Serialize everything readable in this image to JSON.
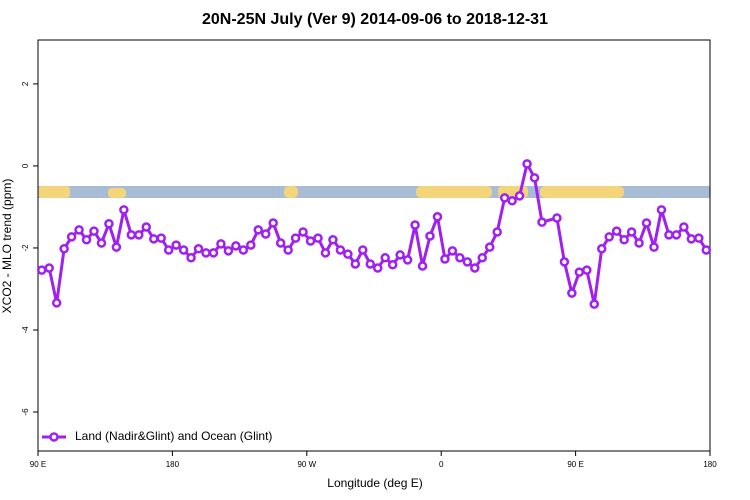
{
  "chart_data": {
    "type": "line",
    "title": "20N-25N July (Ver 9)   2014-09-06 to 2018-12-31",
    "x_label": "Longitude (deg E)",
    "y_label": "XCO2 - MLO trend (ppm)",
    "xlim": [
      90,
      540
    ],
    "ylim": [
      -6.95,
      3.07
    ],
    "xticks": [
      {
        "value": 90,
        "label": "90 E"
      },
      180,
      {
        "value": 270,
        "label": "90 W"
      },
      {
        "value": 360,
        "label": "0"
      },
      {
        "value": 450,
        "label": "90 E"
      },
      {
        "value": 540,
        "label": "180"
      }
    ],
    "yticks": [
      -6,
      -4,
      -2,
      0,
      2
    ],
    "legend": "bottom-left",
    "x": [
      92.5,
      97.5,
      102.5,
      107.5,
      112.5,
      117.5,
      122.5,
      127.5,
      132.5,
      137.5,
      142.5,
      147.5,
      152.5,
      157.5,
      162.5,
      167.5,
      172.5,
      177.5,
      182.5,
      187.5,
      192.5,
      197.5,
      202.5,
      207.5,
      212.5,
      217.5,
      222.5,
      227.5,
      232.5,
      237.5,
      242.5,
      247.5,
      252.5,
      257.5,
      262.5,
      267.5,
      272.5,
      277.5,
      282.5,
      287.5,
      292.5,
      297.5,
      302.5,
      307.5,
      312.5,
      317.5,
      322.5,
      327.5,
      332.5,
      337.5,
      342.5,
      347.5,
      352.5,
      357.5,
      362.5,
      367.5,
      372.5,
      377.5,
      382.5,
      387.5,
      392.5,
      397.5,
      402.5,
      407.5,
      412.5,
      417.5,
      422.5,
      427.5,
      437.5,
      442.5,
      447.5,
      452.5,
      457.5,
      462.5,
      467.5,
      472.5,
      477.5,
      482.5,
      487.5,
      492.5,
      497.5,
      502.5,
      507.5,
      512.5,
      517.5,
      522.5,
      527.5,
      532.5,
      537.5
    ],
    "series": [
      {
        "name": "Land (Nadir&Glint) and Ocean (Glint)",
        "color": "#a020f0",
        "values": [
          -2.54,
          -2.49,
          -3.34,
          -2.02,
          -1.73,
          -1.56,
          -1.8,
          -1.59,
          -1.88,
          -1.41,
          -1.98,
          -1.07,
          -1.68,
          -1.68,
          -1.49,
          -1.78,
          -1.76,
          -2.05,
          -1.93,
          -2.05,
          -2.24,
          -2.02,
          -2.12,
          -2.12,
          -1.9,
          -2.07,
          -1.95,
          -2.05,
          -1.93,
          -1.56,
          -1.66,
          -1.39,
          -1.88,
          -2.05,
          -1.76,
          -1.61,
          -1.83,
          -1.76,
          -2.12,
          -1.8,
          -2.05,
          -2.15,
          -2.39,
          -2.05,
          -2.39,
          -2.49,
          -2.24,
          -2.41,
          -2.17,
          -2.29,
          -1.44,
          -2.44,
          -1.71,
          -1.24,
          -2.27,
          -2.07,
          -2.24,
          -2.34,
          -2.49,
          -2.24,
          -1.98,
          -1.61,
          -0.78,
          -0.85,
          -0.73,
          0.05,
          -0.29,
          -1.37,
          -1.27,
          -2.34,
          -3.1,
          -2.59,
          -2.54,
          -3.37,
          -2.02,
          -1.73,
          -1.59,
          -1.8,
          -1.61,
          -1.88,
          -1.39,
          -1.98,
          -1.07,
          -1.68,
          -1.68,
          -1.49,
          -1.78,
          -1.76,
          -2.05
        ]
      }
    ]
  }
}
